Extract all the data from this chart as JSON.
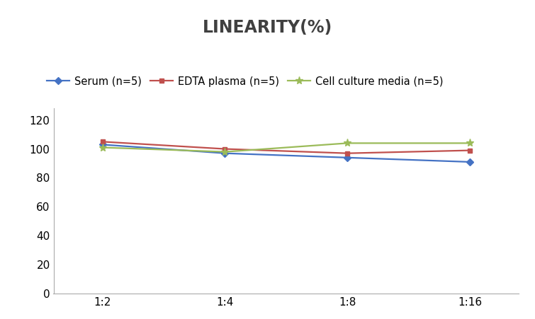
{
  "title": "LINEARITY(%)",
  "x_labels": [
    "1:2",
    "1:4",
    "1:8",
    "1:16"
  ],
  "x_positions": [
    0,
    1,
    2,
    3
  ],
  "series": [
    {
      "label": "Serum (n=5)",
      "values": [
        103,
        97,
        94,
        91
      ],
      "color": "#4472C4",
      "marker": "D",
      "marker_size": 5,
      "linewidth": 1.6
    },
    {
      "label": "EDTA plasma (n=5)",
      "values": [
        105,
        100,
        97,
        99
      ],
      "color": "#C0504D",
      "marker": "s",
      "marker_size": 5,
      "linewidth": 1.6
    },
    {
      "label": "Cell culture media (n=5)",
      "values": [
        101,
        98,
        104,
        104
      ],
      "color": "#9BBB59",
      "marker": "*",
      "marker_size": 8,
      "linewidth": 1.6
    }
  ],
  "ylim": [
    0,
    128
  ],
  "yticks": [
    0,
    20,
    40,
    60,
    80,
    100,
    120
  ],
  "background_color": "#FFFFFF",
  "title_fontsize": 17,
  "legend_fontsize": 10.5,
  "tick_fontsize": 11
}
